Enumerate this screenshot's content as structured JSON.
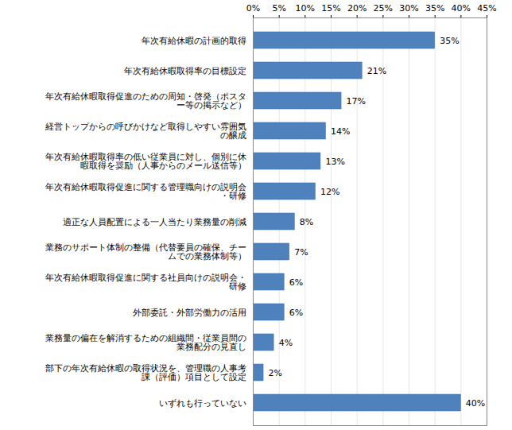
{
  "chart_data": {
    "type": "bar",
    "orientation": "horizontal",
    "categories": [
      "年次有給休暇の計画的取得",
      "年次有給休暇取得率の目標設定",
      "年次有給休暇取得促進のための周知・啓発（ポスター等の掲示など）",
      "経営トップからの呼びかけなど取得しやすい雰囲気の醸成",
      "年次有給休暇取得率の低い従業員に対し、個別に休暇取得を奨励（人事からのメール送信等）",
      "年次有給休暇取得促進に関する管理職向けの説明会・研修",
      "適正な人員配置による一人当たり業務量の削減",
      "業務のサポート体制の整備（代替要員の確保、チームでの業務体制等）",
      "年次有給休暇取得促進に関する社員向けの説明会・研修",
      "外部委託・外部労働力の活用",
      "業務量の偏在を解消するための組織間・従業員間の業務配分の見直し",
      "部下の年次有給休暇の取得状況を、管理職の人事考課（評価）項目として設定",
      "いずれも行っていない"
    ],
    "values": [
      35,
      21,
      17,
      14,
      13,
      12,
      8,
      7,
      6,
      6,
      4,
      2,
      40
    ],
    "value_labels": [
      "35%",
      "21%",
      "17%",
      "14%",
      "13%",
      "12%",
      "8%",
      "7%",
      "6%",
      "6%",
      "4%",
      "2%",
      "40%"
    ],
    "color": "#4f81bd",
    "xlim": [
      0,
      45
    ],
    "xticks": [
      {
        "value": 0,
        "label": "0%"
      },
      {
        "value": 5,
        "label": "5%"
      },
      {
        "value": 10,
        "label": "10%"
      },
      {
        "value": 15,
        "label": "15%"
      },
      {
        "value": 20,
        "label": "20%"
      },
      {
        "value": 25,
        "label": "25%"
      },
      {
        "value": 30,
        "label": "30%"
      },
      {
        "value": 35,
        "label": "35%"
      },
      {
        "value": 40,
        "label": "40%"
      },
      {
        "value": 45,
        "label": "45%"
      }
    ],
    "grid": true,
    "data_labels": true
  }
}
